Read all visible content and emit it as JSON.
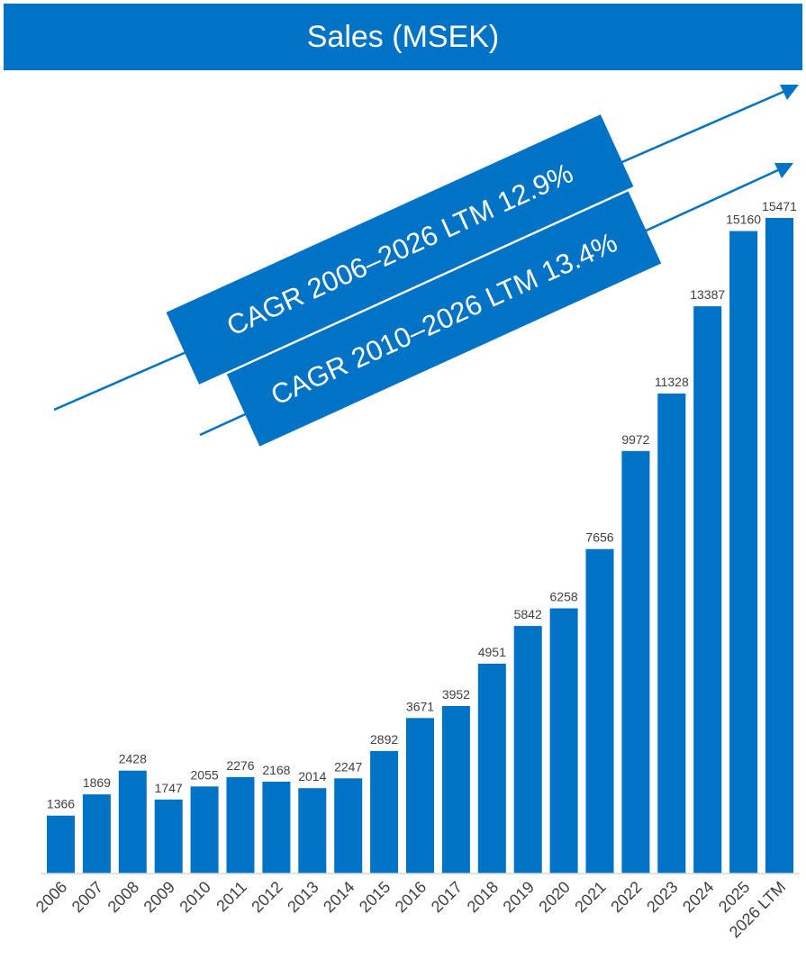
{
  "title": "Sales (MSEK)",
  "colors": {
    "accent": "#0073c6",
    "text": "#404040",
    "axis": "#d9d9d9"
  },
  "annotations": [
    {
      "text": "CAGR 2006–2026 LTM 12.9%"
    },
    {
      "text": "CAGR 2010–2026 LTM 13.4%"
    }
  ],
  "chart_data": {
    "type": "bar",
    "title": "Sales (MSEK)",
    "xlabel": "",
    "ylabel": "",
    "categories": [
      "2006",
      "2007",
      "2008",
      "2009",
      "2010",
      "2011",
      "2012",
      "2013",
      "2014",
      "2015",
      "2016",
      "2017",
      "2018",
      "2019",
      "2020",
      "2021",
      "2022",
      "2023",
      "2024",
      "2025",
      "2026 LTM"
    ],
    "values": [
      1366,
      1869,
      2428,
      1747,
      2055,
      2276,
      2168,
      2014,
      2247,
      2892,
      3671,
      3952,
      4951,
      5842,
      6258,
      7656,
      9972,
      11328,
      13387,
      15160,
      15471
    ],
    "ylim": [
      0,
      15471
    ],
    "grid": false,
    "legend": "none",
    "data_labels": true,
    "annotations": [
      "CAGR 2006–2026 LTM 12.9%",
      "CAGR 2010–2026 LTM 13.4%"
    ]
  }
}
